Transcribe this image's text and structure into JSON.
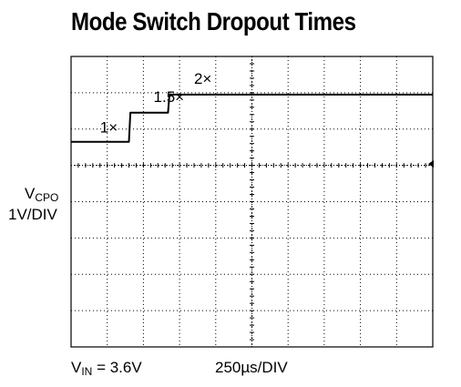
{
  "chart_data": {
    "type": "line",
    "title": "Mode Switch Dropout Times",
    "ylabel_var": "V",
    "ylabel_sub": "CPO",
    "ylabel_unit": "1V/DIV",
    "condition_var": "V",
    "condition_sub": "IN",
    "condition_value": " = 3.6V",
    "xlabel": "250µs/DIV",
    "grid": true,
    "x_divisions": 10,
    "y_divisions": 8,
    "xlim": [
      0,
      2500
    ],
    "ylim": [
      -5,
      3
    ],
    "x_unit_per_div": 250,
    "y_unit_per_div": 1,
    "series": [
      {
        "x": [
          0,
          400,
          410,
          670,
          680,
          2500
        ],
        "y": [
          0.65,
          0.65,
          1.45,
          1.45,
          1.95,
          1.95
        ]
      }
    ],
    "annotations": [
      {
        "text": "1×",
        "x": 200,
        "y": 0.9
      },
      {
        "text": "1.5×",
        "x": 570,
        "y": 1.75
      },
      {
        "text": "2×",
        "x": 850,
        "y": 2.25
      }
    ],
    "colors": {
      "trace": "#000000",
      "grid": "#000000"
    }
  }
}
